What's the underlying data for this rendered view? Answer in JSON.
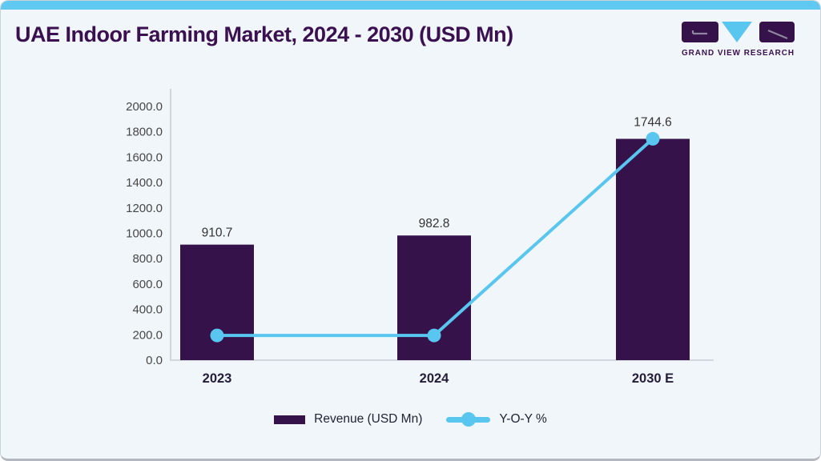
{
  "page": {
    "title": "UAE Indoor Farming Market, 2024 - 2030 (USD Mn)"
  },
  "logo": {
    "brand": "GRAND VIEW RESEARCH"
  },
  "chart_data": {
    "type": "bar",
    "title": "UAE Indoor Farming Market, 2024 - 2030 (USD Mn)",
    "categories": [
      "2023",
      "2024",
      "2030 E"
    ],
    "series": [
      {
        "name": "Revenue (USD Mn)",
        "type": "bar",
        "values": [
          910.7,
          982.8,
          1744.6
        ]
      },
      {
        "name": "Y-O-Y %",
        "type": "line",
        "note": "secondary axis not shown; point heights estimated against left axis",
        "plotted_at_left_axis": [
          195,
          195,
          1745
        ]
      }
    ],
    "data_labels": [
      "910.7",
      "982.8",
      "1744.6"
    ],
    "xlabel": "",
    "ylabel": "",
    "ylim": [
      0,
      2000
    ],
    "ytick_step": 200,
    "yticks": [
      "0.0",
      "200.0",
      "400.0",
      "600.0",
      "800.0",
      "1000.0",
      "1200.0",
      "1400.0",
      "1600.0",
      "1800.0",
      "2000.0"
    ],
    "grid": false,
    "legend_position": "bottom"
  },
  "legend": {
    "items": [
      {
        "label": "Revenue (USD Mn)",
        "swatch": "bar"
      },
      {
        "label": "Y-O-Y %",
        "swatch": "line"
      }
    ]
  },
  "colors": {
    "bar": "#351249",
    "line": "#59c6f0",
    "title": "#3a1050",
    "topbar": "#5fc9f2",
    "panel_bg": "#f0f6fa",
    "axis": "#c7cdd3",
    "tick_text": "#474747",
    "value_label": "#333333",
    "xcat_text": "#241d3a"
  }
}
